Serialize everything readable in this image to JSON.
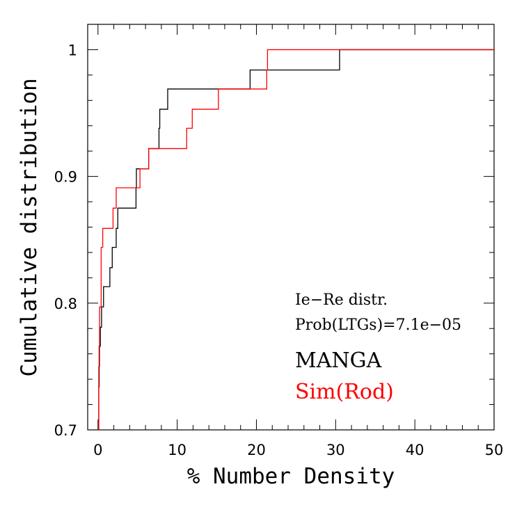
{
  "chart_data": {
    "type": "line",
    "title": "",
    "xlabel": "% Number Density",
    "ylabel": "Cumulative distribution",
    "xlim": [
      -1.3,
      50
    ],
    "ylim": [
      0.7,
      1.02
    ],
    "xticks_major": [
      0,
      10,
      20,
      30,
      40,
      50
    ],
    "xtick_labels": [
      "0",
      "10",
      "20",
      "30",
      "40",
      "50"
    ],
    "xticks_minor_step": 2,
    "yticks_major": [
      0.7,
      0.8,
      0.9,
      1.0
    ],
    "ytick_labels": [
      "0.7",
      "0.8",
      "0.9",
      "1"
    ],
    "yticks_minor_step": 0.02,
    "grid": false,
    "annotations": [
      "Ie−Re distr.",
      "Prob(LTGs)=7.1e−05"
    ],
    "series": [
      {
        "name": "MANGA",
        "color": "#000000",
        "steps": [
          [
            0.1,
            0.7
          ],
          [
            0.1,
            0.734
          ],
          [
            0.15,
            0.766
          ],
          [
            0.3,
            0.781
          ],
          [
            0.45,
            0.797
          ],
          [
            0.7,
            0.813
          ],
          [
            1.5,
            0.828
          ],
          [
            1.8,
            0.844
          ],
          [
            2.3,
            0.859
          ],
          [
            2.5,
            0.875
          ],
          [
            4.8,
            0.891
          ],
          [
            4.85,
            0.906
          ],
          [
            6.4,
            0.922
          ],
          [
            7.7,
            0.938
          ],
          [
            7.8,
            0.953
          ],
          [
            8.8,
            0.969
          ],
          [
            19.2,
            0.984
          ],
          [
            30.5,
            1.0
          ],
          [
            50,
            1.0
          ]
        ]
      },
      {
        "name": "Sim(Rod)",
        "color": "#ff0000",
        "steps": [
          [
            0.05,
            0.7
          ],
          [
            0.1,
            0.75
          ],
          [
            0.2,
            0.797
          ],
          [
            0.4,
            0.844
          ],
          [
            0.6,
            0.859
          ],
          [
            1.9,
            0.875
          ],
          [
            2.3,
            0.891
          ],
          [
            5.3,
            0.906
          ],
          [
            6.4,
            0.922
          ],
          [
            11.2,
            0.938
          ],
          [
            11.9,
            0.953
          ],
          [
            15.2,
            0.969
          ],
          [
            21.3,
            0.984
          ],
          [
            21.4,
            1.0
          ],
          [
            50,
            1.0
          ]
        ]
      }
    ]
  }
}
